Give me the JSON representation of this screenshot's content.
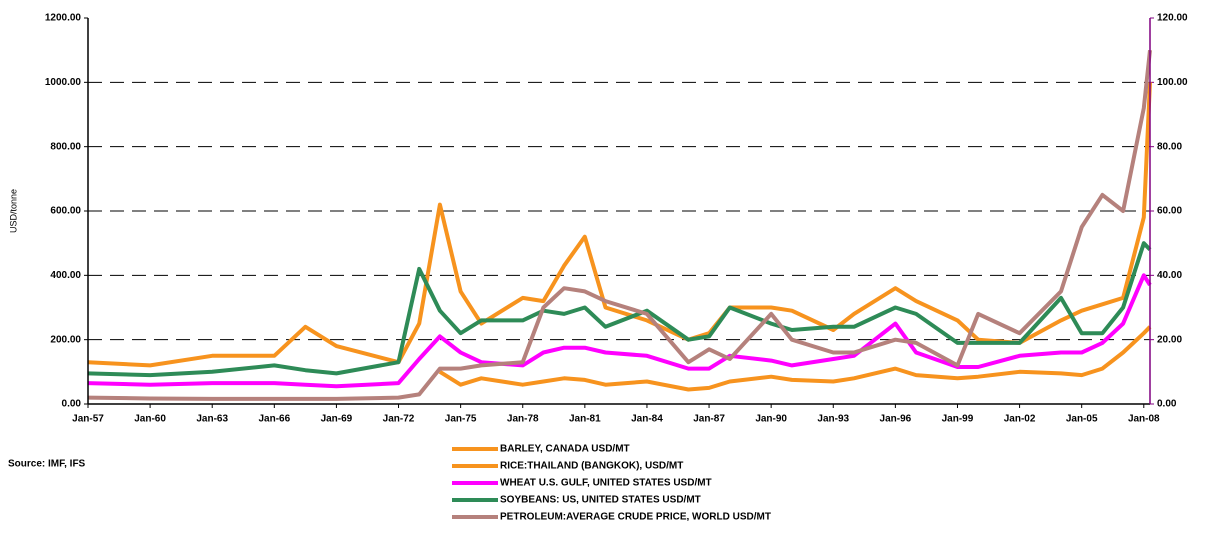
{
  "chart_data": {
    "type": "line",
    "y_label": "USD/tonne",
    "source": "Source: IMF, IFS",
    "x": [
      1957,
      1960,
      1963,
      1966,
      1967.5,
      1969,
      1972,
      1973,
      1974,
      1975,
      1976,
      1978,
      1979,
      1980,
      1981,
      1982,
      1984,
      1986,
      1987,
      1988,
      1990,
      1991,
      1993,
      1994,
      1996,
      1997,
      1999,
      2000,
      2002,
      2004,
      2005,
      2006,
      2007,
      2008,
      2008.3
    ],
    "xlim": [
      1957,
      2008.3
    ],
    "xticks": [
      {
        "value": 1957,
        "label": "Jan-57"
      },
      {
        "value": 1960,
        "label": "Jan-60"
      },
      {
        "value": 1963,
        "label": "Jan-63"
      },
      {
        "value": 1966,
        "label": "Jan-66"
      },
      {
        "value": 1969,
        "label": "Jan-69"
      },
      {
        "value": 1972,
        "label": "Jan-72"
      },
      {
        "value": 1975,
        "label": "Jan-75"
      },
      {
        "value": 1978,
        "label": "Jan-78"
      },
      {
        "value": 1981,
        "label": "Jan-81"
      },
      {
        "value": 1984,
        "label": "Jan-84"
      },
      {
        "value": 1987,
        "label": "Jan-87"
      },
      {
        "value": 1990,
        "label": "Jan-90"
      },
      {
        "value": 1993,
        "label": "Jan-93"
      },
      {
        "value": 1996,
        "label": "Jan-96"
      },
      {
        "value": 1999,
        "label": "Jan-99"
      },
      {
        "value": 2002,
        "label": "Jan-02"
      },
      {
        "value": 2005,
        "label": "Jan-05"
      },
      {
        "value": 2008,
        "label": "Jan-08"
      }
    ],
    "ylim": [
      0,
      1200
    ],
    "yticks": [
      {
        "value": 0,
        "label": "0.00"
      },
      {
        "value": 200,
        "label": "200.00"
      },
      {
        "value": 400,
        "label": "400.00"
      },
      {
        "value": 600,
        "label": "600.00"
      },
      {
        "value": 800,
        "label": "800.00"
      },
      {
        "value": 1000,
        "label": "1000.00"
      },
      {
        "value": 1200,
        "label": "1200.00"
      }
    ],
    "y2lim": [
      0,
      120
    ],
    "y2ticks": [
      {
        "value": 0,
        "label": "0.00"
      },
      {
        "value": 20,
        "label": "20.00"
      },
      {
        "value": 40,
        "label": "40.00"
      },
      {
        "value": 60,
        "label": "60.00"
      },
      {
        "value": 80,
        "label": "80.00"
      },
      {
        "value": 100,
        "label": "100.00"
      },
      {
        "value": 120,
        "label": "120.00"
      }
    ],
    "grid": true,
    "series": [
      {
        "name": "BARLEY, CANADA USD/MT",
        "color": "#f7931e",
        "values": [
          null,
          null,
          null,
          null,
          null,
          null,
          null,
          null,
          100,
          60,
          80,
          60,
          70,
          80,
          75,
          60,
          70,
          45,
          50,
          70,
          85,
          75,
          70,
          80,
          110,
          90,
          80,
          85,
          100,
          95,
          90,
          110,
          160,
          220,
          240
        ]
      },
      {
        "name": "RICE:THAILAND (BANGKOK), USD/MT",
        "color": "#f7931e",
        "values": [
          130,
          120,
          150,
          150,
          240,
          180,
          130,
          250,
          620,
          350,
          250,
          330,
          320,
          430,
          520,
          300,
          260,
          200,
          220,
          300,
          300,
          290,
          230,
          280,
          360,
          320,
          260,
          200,
          190,
          260,
          290,
          310,
          330,
          580,
          1000
        ]
      },
      {
        "name": "WHEAT U.S. GULF, UNITED STATES USD/MT",
        "color": "#ff00ff",
        "values": [
          65,
          60,
          65,
          65,
          60,
          55,
          65,
          140,
          210,
          160,
          130,
          120,
          160,
          175,
          175,
          160,
          150,
          110,
          110,
          150,
          135,
          120,
          140,
          150,
          250,
          160,
          115,
          115,
          150,
          160,
          160,
          190,
          250,
          400,
          370
        ]
      },
      {
        "name": "SOYBEANS: US, UNITED STATES USD/MT",
        "color": "#2e8b57",
        "values": [
          95,
          90,
          100,
          120,
          105,
          95,
          130,
          420,
          290,
          220,
          260,
          260,
          290,
          280,
          300,
          240,
          290,
          200,
          210,
          300,
          250,
          230,
          240,
          240,
          300,
          280,
          190,
          190,
          190,
          330,
          220,
          220,
          300,
          500,
          480
        ]
      },
      {
        "name": " PETROLEUM:AVERAGE CRUDE PRICE, WORLD USD/MT",
        "color": "#b5817c",
        "axis": "y2",
        "values": [
          2,
          1.7,
          1.6,
          1.6,
          1.6,
          1.6,
          2,
          3,
          11,
          11,
          12,
          13,
          30,
          36,
          35,
          32,
          28,
          13,
          17,
          14,
          28,
          20,
          16,
          16,
          20,
          19,
          12,
          28,
          22,
          35,
          55,
          65,
          60,
          92,
          110
        ]
      }
    ]
  }
}
